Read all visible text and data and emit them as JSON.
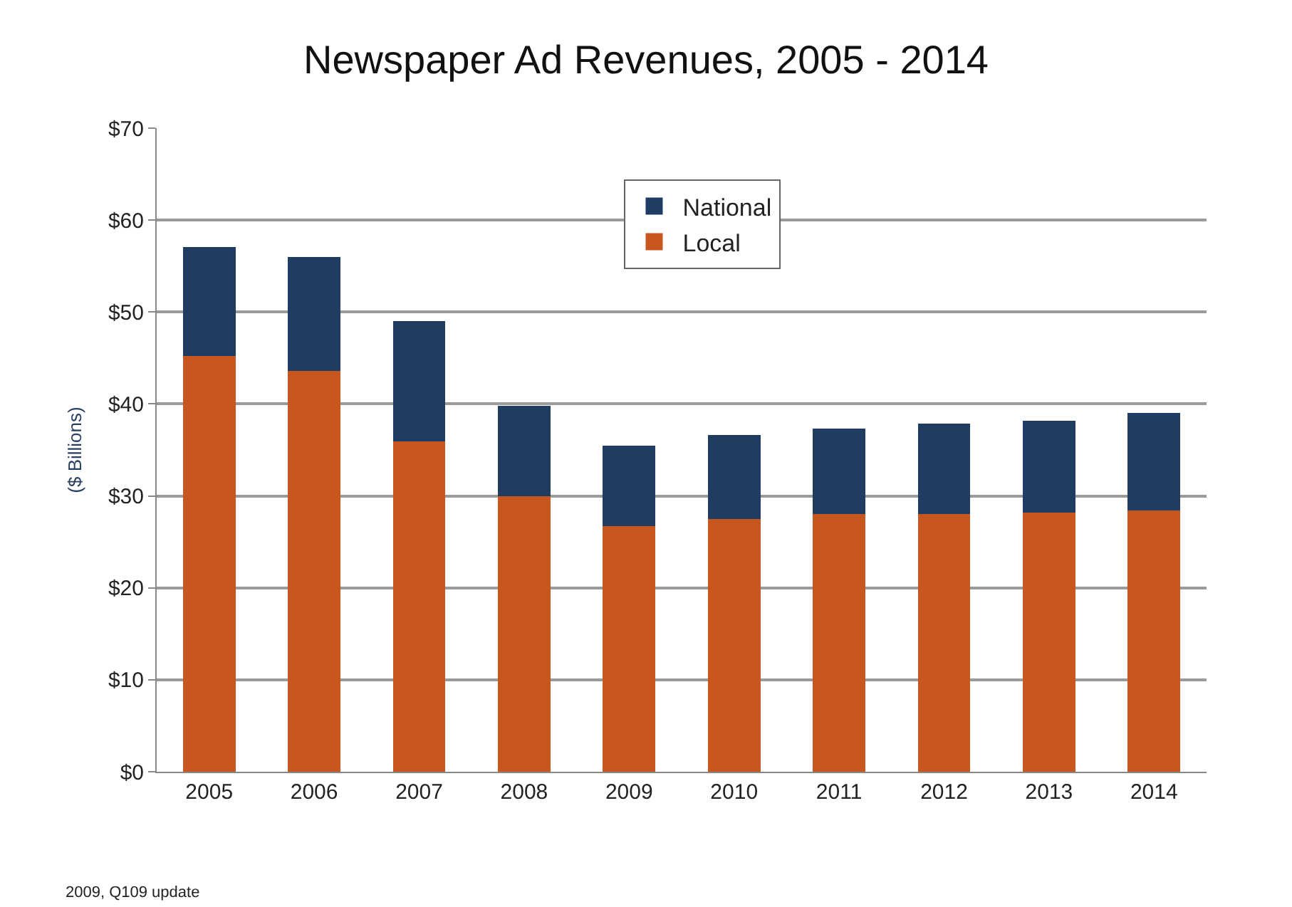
{
  "chart_data": {
    "type": "bar",
    "title": "Newspaper Ad Revenues, 2005 - 2014",
    "ylabel": "($ Billions)",
    "categories": [
      "2005",
      "2006",
      "2007",
      "2008",
      "2009",
      "2010",
      "2011",
      "2012",
      "2013",
      "2014"
    ],
    "stacked": true,
    "series": [
      {
        "name": "Local",
        "color": "#c8561f",
        "values": [
          45.2,
          43.6,
          35.9,
          30.0,
          26.7,
          27.5,
          28.0,
          28.0,
          28.2,
          28.4
        ]
      },
      {
        "name": "National",
        "color": "#1f3d62",
        "values": [
          11.9,
          12.4,
          13.1,
          9.8,
          8.8,
          9.1,
          9.3,
          9.9,
          10.0,
          10.6
        ]
      }
    ],
    "ylim": [
      0,
      70
    ],
    "yticks": [
      {
        "value": 0,
        "label": "$0"
      },
      {
        "value": 10,
        "label": "$10"
      },
      {
        "value": 20,
        "label": "$20"
      },
      {
        "value": 30,
        "label": "$30"
      },
      {
        "value": 40,
        "label": "$40"
      },
      {
        "value": 50,
        "label": "$50"
      },
      {
        "value": 60,
        "label": "$60"
      },
      {
        "value": 70,
        "label": "$70"
      }
    ],
    "grid": "y",
    "legend": "top",
    "annotations": [
      "2009, Q109 update"
    ]
  }
}
